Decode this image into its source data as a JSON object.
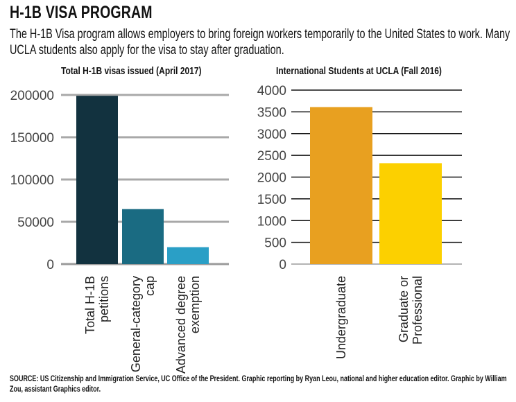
{
  "header": {
    "title": "H-1B VISA PROGRAM",
    "subtitle": "The H-1B Visa program allows employers to bring foreign workers temporarily to the United States to work. Many UCLA students also apply for the visa to stay after graduation."
  },
  "chart_data": [
    {
      "type": "bar",
      "title": "Total H-1B visas issued (April 2017)",
      "categories": [
        [
          "Total H-1B",
          "petitions"
        ],
        [
          "General-category",
          "cap"
        ],
        [
          "Advanced degree",
          "exemption"
        ]
      ],
      "values": [
        199000,
        65000,
        20000
      ],
      "colors": [
        "#12323f",
        "#1a6b82",
        "#2a9fc6"
      ],
      "yticks": [
        0,
        50000,
        100000,
        150000,
        200000
      ],
      "ylim": [
        0,
        200000
      ],
      "grid": true
    },
    {
      "type": "bar",
      "title": "International Students at UCLA (Fall 2016)",
      "categories": [
        [
          "Undergraduate"
        ],
        [
          "Graduate or",
          "Professional"
        ]
      ],
      "values": [
        3610,
        2320
      ],
      "colors": [
        "#e8a020",
        "#fcd000"
      ],
      "yticks": [
        0,
        500,
        1000,
        1500,
        2000,
        2500,
        3000,
        3500,
        4000
      ],
      "ylim": [
        0,
        4000
      ],
      "grid": true
    }
  ],
  "source": "SOURCE: US Citizenship and Immigration Service, UC Office of the President. Graphic reporting by Ryan Leou, national and higher education editor. Graphic by William Zou, assistant Graphics editor."
}
